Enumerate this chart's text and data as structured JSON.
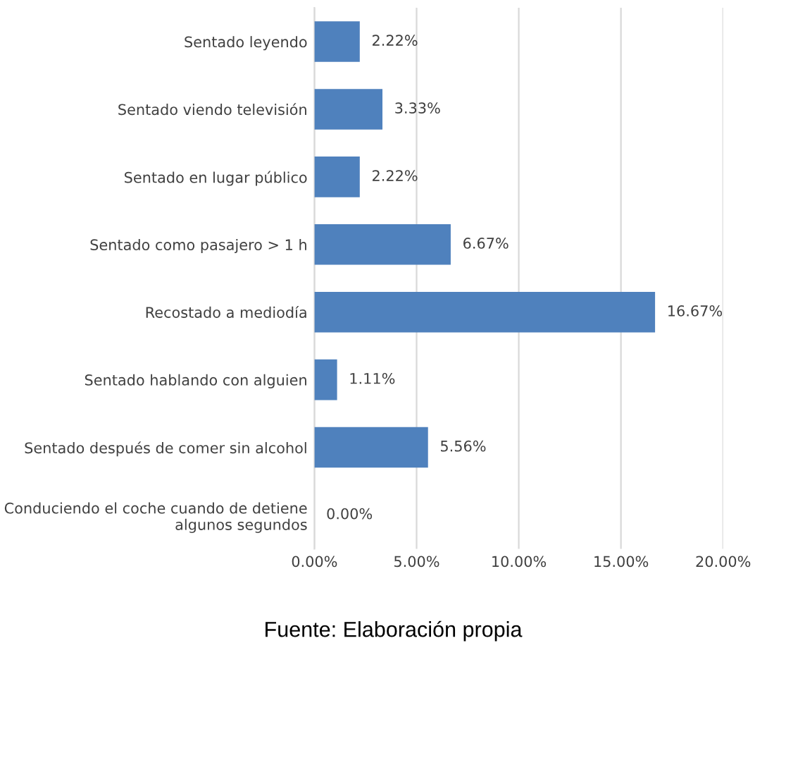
{
  "chart_data": {
    "type": "bar",
    "orientation": "horizontal",
    "categories": [
      "Sentado leyendo",
      "Sentado viendo televisión",
      "Sentado en lugar público",
      "Sentado como pasajero > 1 h",
      "Recostado a mediodía",
      "Sentado hablando con alguien",
      "Sentado después de comer sin alcohol",
      "Conduciendo el coche cuando de detiene\nalgunos segundos"
    ],
    "values": [
      2.22,
      3.33,
      2.22,
      6.67,
      16.67,
      1.11,
      5.56,
      0.0
    ],
    "color": "#4f81bd",
    "xlim": [
      0,
      20
    ],
    "xticks": [
      {
        "value": 0,
        "label": "0.00%"
      },
      {
        "value": 5,
        "label": "5.00%"
      },
      {
        "value": 10,
        "label": "10.00%"
      },
      {
        "value": 15,
        "label": "15.00%"
      },
      {
        "value": 20,
        "label": "20.00%"
      }
    ],
    "grid": "x",
    "value_labels": [
      "2.22%",
      "3.33%",
      "2.22%",
      "6.67%",
      "16.67%",
      "1.11%",
      "5.56%",
      "0.00%"
    ],
    "annotations": [
      "Fuente: Elaboración propia"
    ]
  }
}
